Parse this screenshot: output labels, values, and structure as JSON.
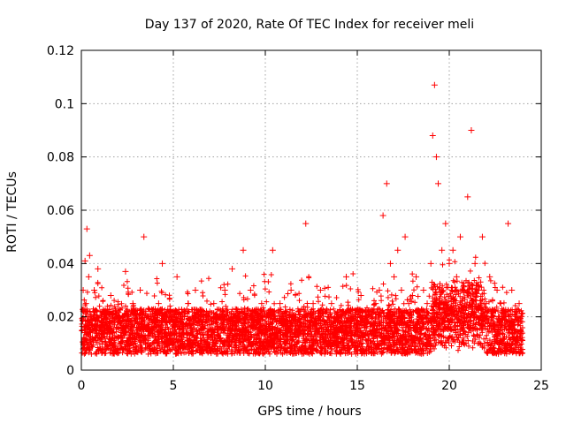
{
  "chart_data": {
    "type": "scatter",
    "title": "Day 137 of 2020, Rate Of TEC Index for receiver meli",
    "xlabel": "GPS time / hours",
    "ylabel": "ROTI / TECUs",
    "xlim": [
      0,
      25
    ],
    "ylim": [
      0,
      0.12
    ],
    "x_ticks": [
      0,
      5,
      10,
      15,
      20,
      25
    ],
    "x_tick_labels": [
      "0",
      "5",
      "10",
      "15",
      "20",
      "25"
    ],
    "y_ticks": [
      0,
      0.02,
      0.04,
      0.06,
      0.08,
      0.1,
      0.12
    ],
    "y_tick_labels": [
      "0",
      "0.02",
      "0.04",
      "0.06",
      "0.08",
      "0.1",
      "0.12"
    ],
    "grid": true,
    "marker": "+",
    "color": "#ff0000",
    "series": [
      {
        "name": "ROTI",
        "x": [
          0.05,
          0.1,
          0.15,
          0.2,
          0.25,
          0.3,
          0.35,
          0.4,
          0.45,
          0.5,
          0.6,
          0.7,
          0.8,
          0.9,
          1.0,
          1.2,
          1.4,
          1.6,
          1.8,
          2.0,
          2.2,
          2.4,
          2.6,
          2.8,
          3.0,
          3.2,
          3.4,
          3.5,
          3.6,
          3.8,
          4.0,
          4.2,
          4.4,
          4.6,
          4.8,
          5.0,
          5.2,
          5.4,
          5.6,
          5.8,
          6.0,
          6.2,
          6.4,
          6.6,
          6.8,
          7.0,
          7.2,
          7.4,
          7.6,
          7.8,
          8.0,
          8.2,
          8.4,
          8.6,
          8.8,
          9.0,
          9.2,
          9.4,
          9.6,
          9.8,
          10.0,
          10.2,
          10.4,
          10.6,
          10.8,
          11.0,
          11.2,
          11.4,
          11.6,
          11.8,
          12.0,
          12.2,
          12.4,
          12.6,
          12.8,
          13.0,
          13.2,
          13.4,
          13.6,
          13.8,
          14.0,
          14.2,
          14.4,
          14.6,
          14.8,
          15.0,
          15.2,
          15.4,
          15.6,
          15.8,
          16.0,
          16.2,
          16.4,
          16.6,
          16.8,
          17.0,
          17.2,
          17.4,
          17.6,
          17.8,
          18.0,
          18.2,
          18.4,
          18.6,
          18.8,
          19.0,
          19.1,
          19.2,
          19.3,
          19.4,
          19.6,
          19.8,
          20.0,
          20.2,
          20.4,
          20.6,
          20.8,
          21.0,
          21.2,
          21.4,
          21.6,
          21.8,
          22.0,
          22.2,
          22.4,
          22.6,
          22.8,
          23.0,
          23.2,
          23.4,
          23.6,
          23.8
        ],
        "y": [
          0.015,
          0.03,
          0.012,
          0.041,
          0.025,
          0.053,
          0.018,
          0.035,
          0.043,
          0.02,
          0.015,
          0.03,
          0.012,
          0.038,
          0.016,
          0.022,
          0.014,
          0.028,
          0.017,
          0.02,
          0.013,
          0.037,
          0.018,
          0.025,
          0.014,
          0.03,
          0.05,
          0.022,
          0.016,
          0.02,
          0.018,
          0.025,
          0.04,
          0.016,
          0.022,
          0.017,
          0.035,
          0.013,
          0.02,
          0.025,
          0.016,
          0.03,
          0.018,
          0.014,
          0.022,
          0.012,
          0.025,
          0.015,
          0.02,
          0.03,
          0.016,
          0.038,
          0.018,
          0.022,
          0.045,
          0.014,
          0.03,
          0.018,
          0.015,
          0.025,
          0.02,
          0.016,
          0.045,
          0.018,
          0.025,
          0.02,
          0.015,
          0.03,
          0.018,
          0.022,
          0.02,
          0.055,
          0.018,
          0.025,
          0.015,
          0.03,
          0.018,
          0.02,
          0.025,
          0.015,
          0.018,
          0.022,
          0.035,
          0.018,
          0.02,
          0.018,
          0.028,
          0.016,
          0.022,
          0.02,
          0.025,
          0.03,
          0.058,
          0.07,
          0.04,
          0.035,
          0.045,
          0.03,
          0.05,
          0.025,
          0.028,
          0.035,
          0.022,
          0.03,
          0.025,
          0.04,
          0.088,
          0.107,
          0.08,
          0.07,
          0.045,
          0.055,
          0.04,
          0.045,
          0.035,
          0.05,
          0.03,
          0.065,
          0.09,
          0.04,
          0.03,
          0.05,
          0.025,
          0.035,
          0.02,
          0.03,
          0.025,
          0.02,
          0.055,
          0.03,
          0.022,
          0.025
        ]
      }
    ]
  }
}
